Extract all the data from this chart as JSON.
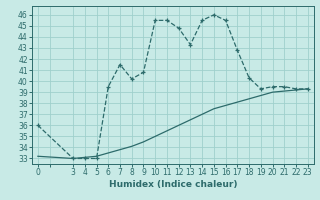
{
  "title": "",
  "xlabel": "Humidex (Indice chaleur)",
  "background_color": "#c8eae6",
  "line_color": "#2d6b6b",
  "grid_color": "#a0d0cc",
  "xtick_labels": [
    "0",
    "",
    "3",
    "4",
    "5",
    "6",
    "7",
    "8",
    "9",
    "10",
    "11",
    "12",
    "13",
    "14",
    "15",
    "16",
    "17",
    "18",
    "19",
    "20",
    "21",
    "22",
    "23"
  ],
  "xtick_positions": [
    0,
    1,
    3,
    4,
    5,
    6,
    7,
    8,
    9,
    10,
    11,
    12,
    13,
    14,
    15,
    16,
    17,
    18,
    19,
    20,
    21,
    22,
    23
  ],
  "yticks": [
    33,
    34,
    35,
    36,
    37,
    38,
    39,
    40,
    41,
    42,
    43,
    44,
    45,
    46
  ],
  "ylim": [
    32.5,
    46.8
  ],
  "xlim": [
    -0.5,
    23.5
  ],
  "curve1_x": [
    0,
    3,
    4,
    5,
    6,
    7,
    8,
    9,
    10,
    11,
    12,
    13,
    14,
    15,
    16,
    17,
    18,
    19,
    20,
    21,
    22,
    23
  ],
  "curve1_y": [
    36.0,
    33.0,
    33.0,
    33.0,
    39.5,
    41.5,
    40.2,
    40.8,
    45.5,
    45.5,
    44.8,
    43.3,
    45.5,
    46.0,
    45.5,
    42.8,
    40.3,
    39.3,
    39.5,
    39.5,
    39.3,
    39.3
  ],
  "curve2_x": [
    0,
    3,
    4,
    5,
    6,
    7,
    8,
    9,
    10,
    11,
    12,
    13,
    14,
    15,
    16,
    17,
    18,
    19,
    20,
    21,
    22,
    23
  ],
  "curve2_y": [
    33.2,
    33.0,
    33.1,
    33.2,
    33.5,
    33.8,
    34.1,
    34.5,
    35.0,
    35.5,
    36.0,
    36.5,
    37.0,
    37.5,
    37.8,
    38.1,
    38.4,
    38.7,
    39.0,
    39.1,
    39.2,
    39.3
  ],
  "markersize": 3.5,
  "linewidth": 0.9,
  "tick_fontsize": 5.5,
  "xlabel_fontsize": 6.5
}
